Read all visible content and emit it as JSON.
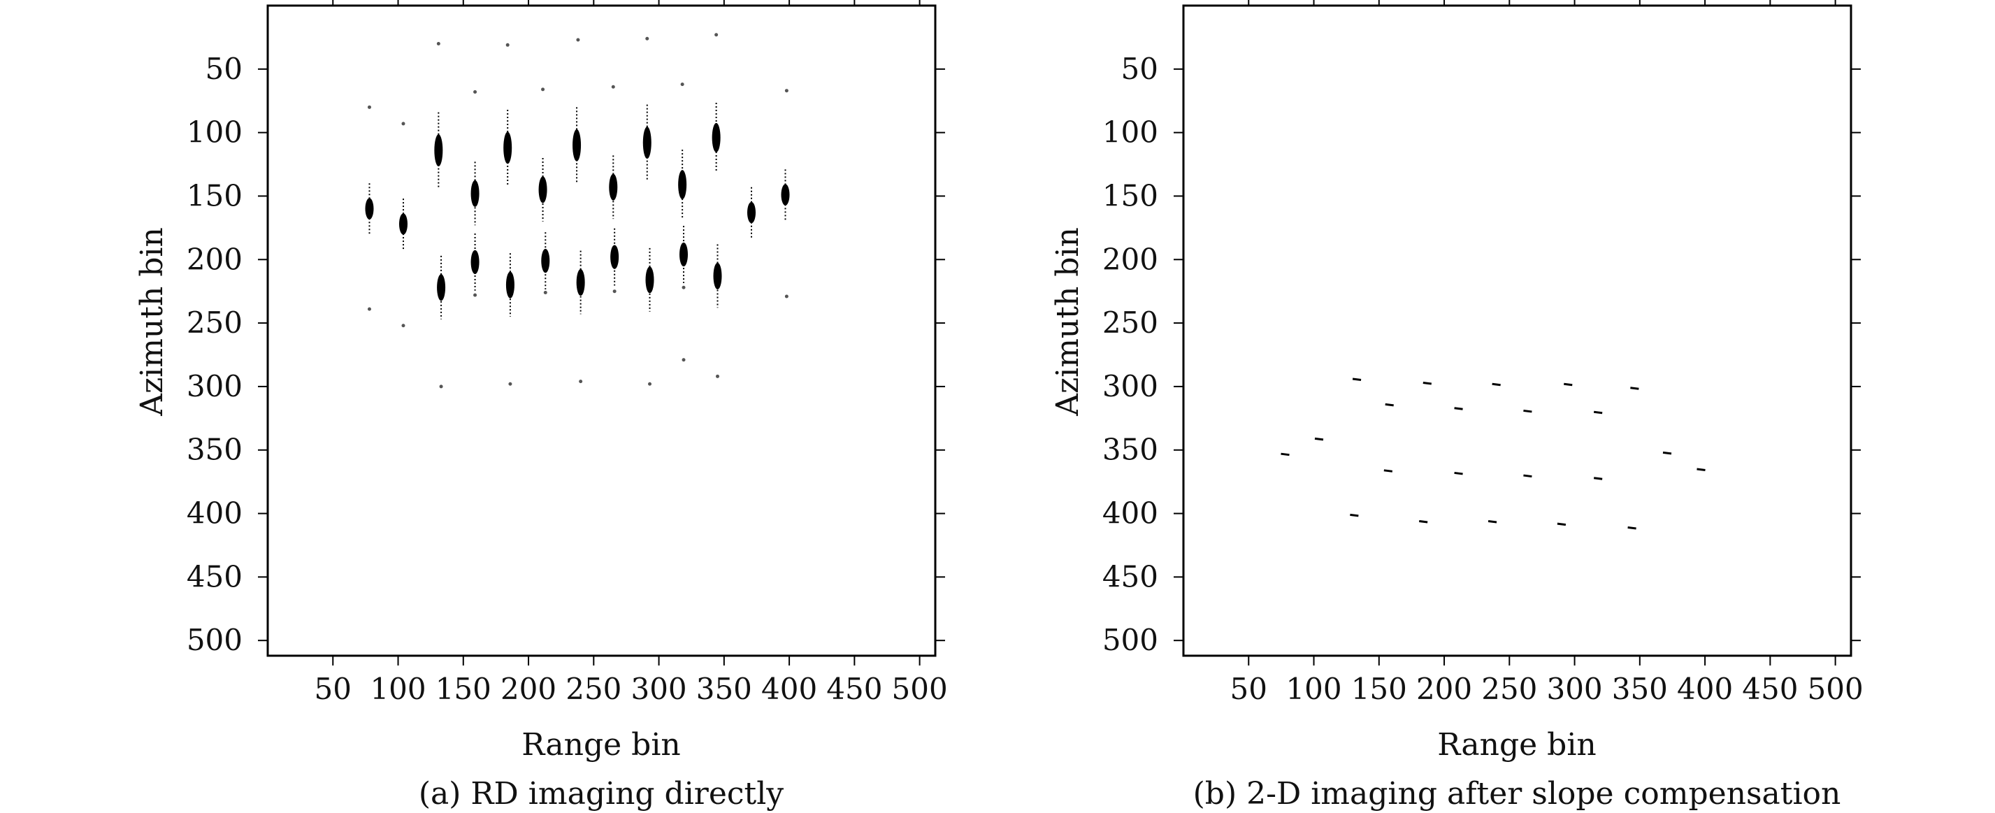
{
  "chart_data": [
    {
      "type": "scatter",
      "caption": "(a) RD imaging directly",
      "xlabel": "Range bin",
      "ylabel": "Azimuth bin",
      "xlim": [
        0,
        512
      ],
      "ylim": [
        512,
        0
      ],
      "y_inverted": true,
      "xticks": [
        50,
        100,
        150,
        200,
        250,
        300,
        350,
        400,
        450,
        500
      ],
      "yticks": [
        50,
        100,
        150,
        200,
        250,
        300,
        350,
        400,
        450,
        500
      ],
      "grid": false,
      "marker_color": "#000000",
      "blobs": [
        {
          "x": 78,
          "y": 160,
          "len": 40
        },
        {
          "x": 104,
          "y": 172,
          "len": 40
        },
        {
          "x": 131,
          "y": 114,
          "len": 60
        },
        {
          "x": 159,
          "y": 148,
          "len": 50
        },
        {
          "x": 184,
          "y": 112,
          "len": 60
        },
        {
          "x": 211,
          "y": 145,
          "len": 50
        },
        {
          "x": 237,
          "y": 110,
          "len": 60
        },
        {
          "x": 265,
          "y": 143,
          "len": 50
        },
        {
          "x": 291,
          "y": 108,
          "len": 60
        },
        {
          "x": 318,
          "y": 141,
          "len": 55
        },
        {
          "x": 344,
          "y": 104,
          "len": 55
        },
        {
          "x": 371,
          "y": 163,
          "len": 40
        },
        {
          "x": 397,
          "y": 149,
          "len": 40
        },
        {
          "x": 133,
          "y": 222,
          "len": 50
        },
        {
          "x": 159,
          "y": 202,
          "len": 45
        },
        {
          "x": 186,
          "y": 220,
          "len": 50
        },
        {
          "x": 213,
          "y": 201,
          "len": 45
        },
        {
          "x": 240,
          "y": 218,
          "len": 50
        },
        {
          "x": 266,
          "y": 198,
          "len": 45
        },
        {
          "x": 293,
          "y": 216,
          "len": 50
        },
        {
          "x": 319,
          "y": 196,
          "len": 45
        },
        {
          "x": 345,
          "y": 213,
          "len": 50
        }
      ],
      "faint": [
        {
          "x": 131,
          "y": 30
        },
        {
          "x": 184,
          "y": 31
        },
        {
          "x": 238,
          "y": 27
        },
        {
          "x": 291,
          "y": 26
        },
        {
          "x": 344,
          "y": 23
        },
        {
          "x": 159,
          "y": 68
        },
        {
          "x": 211,
          "y": 66
        },
        {
          "x": 265,
          "y": 64
        },
        {
          "x": 318,
          "y": 62
        },
        {
          "x": 78,
          "y": 80
        },
        {
          "x": 104,
          "y": 93
        },
        {
          "x": 398,
          "y": 67
        },
        {
          "x": 78,
          "y": 239
        },
        {
          "x": 104,
          "y": 252
        },
        {
          "x": 159,
          "y": 228
        },
        {
          "x": 213,
          "y": 226
        },
        {
          "x": 266,
          "y": 225
        },
        {
          "x": 319,
          "y": 222
        },
        {
          "x": 398,
          "y": 229
        },
        {
          "x": 133,
          "y": 300
        },
        {
          "x": 186,
          "y": 298
        },
        {
          "x": 240,
          "y": 296
        },
        {
          "x": 293,
          "y": 298
        },
        {
          "x": 319,
          "y": 279
        },
        {
          "x": 345,
          "y": 292
        }
      ]
    },
    {
      "type": "scatter",
      "caption": "(b) 2-D imaging after slope compensation",
      "xlabel": "Range bin",
      "ylabel": "Azimuth bin",
      "xlim": [
        0,
        512
      ],
      "ylim": [
        512,
        0
      ],
      "y_inverted": true,
      "xticks": [
        50,
        100,
        150,
        200,
        250,
        300,
        350,
        400,
        450,
        500
      ],
      "yticks": [
        50,
        100,
        150,
        200,
        250,
        300,
        350,
        400,
        450,
        500
      ],
      "grid": false,
      "marker_color": "#000000",
      "points": [
        {
          "x": 78,
          "y": 353
        },
        {
          "x": 104,
          "y": 341
        },
        {
          "x": 131,
          "y": 401
        },
        {
          "x": 133,
          "y": 294
        },
        {
          "x": 158,
          "y": 314
        },
        {
          "x": 157,
          "y": 366
        },
        {
          "x": 184,
          "y": 406
        },
        {
          "x": 187,
          "y": 297
        },
        {
          "x": 211,
          "y": 317
        },
        {
          "x": 211,
          "y": 368
        },
        {
          "x": 237,
          "y": 406
        },
        {
          "x": 240,
          "y": 298
        },
        {
          "x": 264,
          "y": 319
        },
        {
          "x": 264,
          "y": 370
        },
        {
          "x": 290,
          "y": 408
        },
        {
          "x": 295,
          "y": 298
        },
        {
          "x": 318,
          "y": 320
        },
        {
          "x": 318,
          "y": 372
        },
        {
          "x": 344,
          "y": 411
        },
        {
          "x": 346,
          "y": 301
        },
        {
          "x": 371,
          "y": 352
        },
        {
          "x": 397,
          "y": 365
        }
      ]
    }
  ]
}
